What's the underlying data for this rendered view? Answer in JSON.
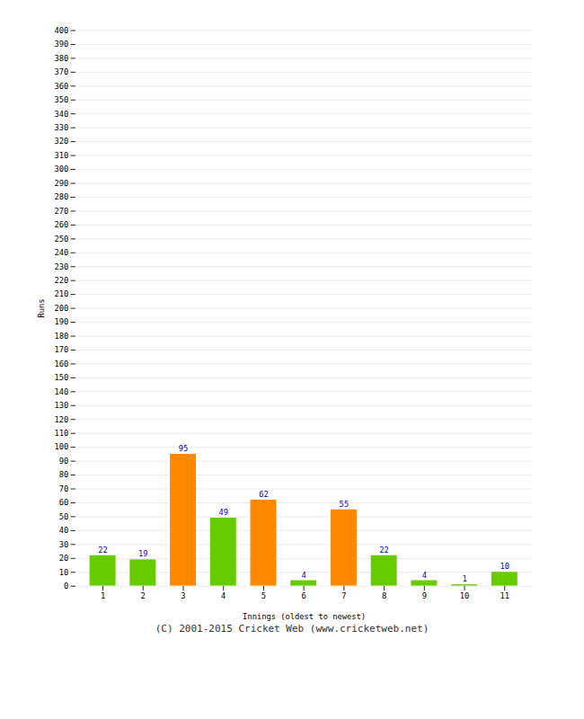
{
  "chart_data": {
    "type": "bar",
    "categories": [
      "1",
      "2",
      "3",
      "4",
      "5",
      "6",
      "7",
      "8",
      "9",
      "10",
      "11"
    ],
    "values": [
      22,
      19,
      95,
      49,
      62,
      4,
      55,
      22,
      4,
      1,
      10
    ],
    "colors": [
      "#66cc00",
      "#66cc00",
      "#ff8800",
      "#66cc00",
      "#ff8800",
      "#66cc00",
      "#ff8800",
      "#66cc00",
      "#66cc00",
      "#66cc00",
      "#66cc00"
    ],
    "xlabel": "Innings (oldest to newest)",
    "ylabel": "Runs",
    "ylim": [
      0,
      400
    ],
    "yticks": [
      0,
      10,
      20,
      30,
      40,
      50,
      60,
      70,
      80,
      90,
      100,
      110,
      120,
      130,
      140,
      150,
      160,
      170,
      180,
      190,
      200,
      210,
      220,
      230,
      240,
      250,
      260,
      270,
      280,
      290,
      300,
      310,
      320,
      330,
      340,
      350,
      360,
      370,
      380,
      390,
      400
    ],
    "grid": true,
    "data_labels": true,
    "annotations": [
      "(C) 2001-2015 Cricket Web (www.cricketweb.net)"
    ]
  }
}
